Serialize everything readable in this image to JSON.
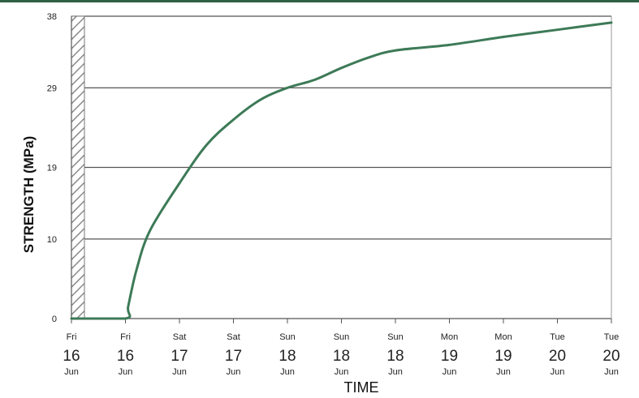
{
  "chart_data": {
    "type": "line",
    "title": "",
    "xlabel": "TIME",
    "ylabel": "STRENGTH (MPa)",
    "ylim": [
      0,
      38
    ],
    "y_ticks": [
      "0",
      "10",
      "19",
      "29",
      "38"
    ],
    "x_ticks": [
      {
        "dow": "Fri",
        "day": "16",
        "mon": "Jun"
      },
      {
        "dow": "Fri",
        "day": "16",
        "mon": "Jun"
      },
      {
        "dow": "Sat",
        "day": "17",
        "mon": "Jun"
      },
      {
        "dow": "Sat",
        "day": "17",
        "mon": "Jun"
      },
      {
        "dow": "Sun",
        "day": "18",
        "mon": "Jun"
      },
      {
        "dow": "Sun",
        "day": "18",
        "mon": "Jun"
      },
      {
        "dow": "Sun",
        "day": "18",
        "mon": "Jun"
      },
      {
        "dow": "Mon",
        "day": "19",
        "mon": "Jun"
      },
      {
        "dow": "Mon",
        "day": "19",
        "mon": "Jun"
      },
      {
        "dow": "Tue",
        "day": "20",
        "mon": "Jun"
      },
      {
        "dow": "Tue",
        "day": "20",
        "mon": "Jun"
      }
    ],
    "grid": "horizontal",
    "hatched_band": "left edge",
    "series": [
      {
        "color": "#3d7a57",
        "points": [
          [
            0,
            0
          ],
          [
            1,
            0
          ],
          [
            1.05,
            1.5
          ],
          [
            1.2,
            6
          ],
          [
            1.45,
            11
          ],
          [
            2,
            17
          ],
          [
            2.5,
            21.8
          ],
          [
            3,
            25
          ],
          [
            3.5,
            27.5
          ],
          [
            4,
            29
          ],
          [
            4.5,
            30
          ],
          [
            5,
            31.5
          ],
          [
            5.5,
            32.8
          ],
          [
            6,
            33.7
          ],
          [
            7,
            34.4
          ],
          [
            8,
            35.4
          ],
          [
            9,
            36.3
          ],
          [
            10,
            37.2
          ]
        ]
      }
    ]
  },
  "colors": {
    "line": "#3d7a57",
    "grid": "#555555",
    "top_rule": "#2f5f44"
  }
}
